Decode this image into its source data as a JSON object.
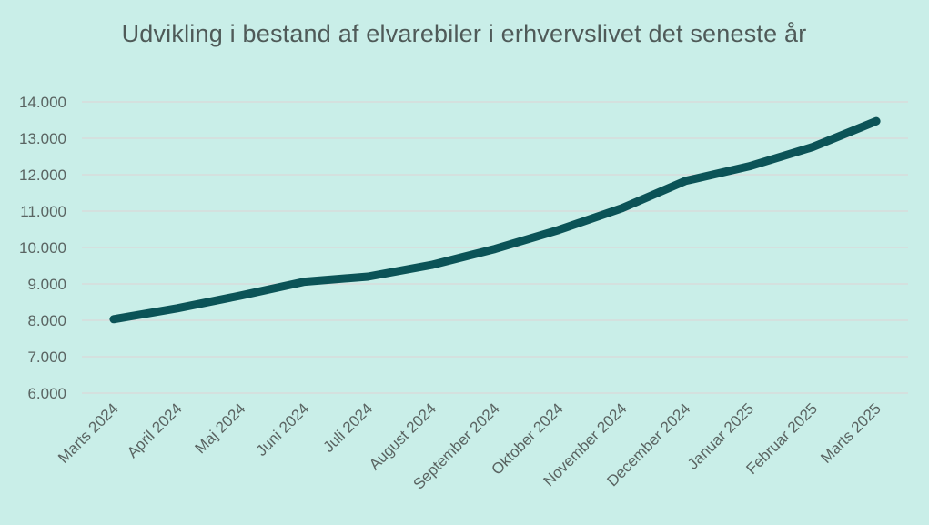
{
  "chart_data": {
    "type": "line",
    "title": "Udvikling i bestand af elvarebiler i erhvervslivet det seneste år",
    "xlabel": "",
    "ylabel": "",
    "categories": [
      "Marts 2024",
      "April 2024",
      "Maj 2024",
      "Juni 2024",
      "Juli 2024",
      "August 2024",
      "September 2024",
      "Oktober 2024",
      "November 2024",
      "December 2024",
      "Januar 2025",
      "Februar 2025",
      "Marts 2025"
    ],
    "series": [
      {
        "values": [
          8030,
          8330,
          8680,
          9060,
          9200,
          9520,
          9960,
          10480,
          11080,
          11830,
          12230,
          12760,
          13470
        ]
      }
    ],
    "ylim": [
      6000,
      14000
    ],
    "yticks": [
      6000,
      7000,
      8000,
      9000,
      10000,
      11000,
      12000,
      13000,
      14000
    ],
    "ytick_labels": [
      "6.000",
      "7.000",
      "8.000",
      "9.000",
      "10.000",
      "11.000",
      "12.000",
      "13.000",
      "14.000"
    ],
    "grid": true,
    "legend": "none",
    "colors": {
      "background": "#c9eee8",
      "line": "#0b5357",
      "grid": "#d7dcdb",
      "text": "#5a6462"
    }
  }
}
